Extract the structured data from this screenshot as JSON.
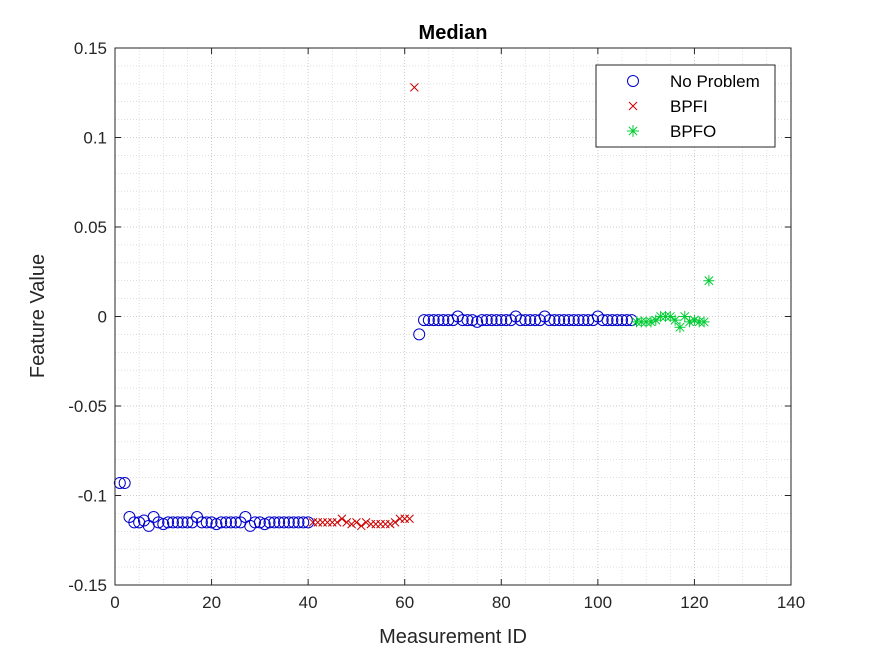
{
  "chart_data": {
    "type": "scatter",
    "title": "Median",
    "xlabel": "Measurement ID",
    "ylabel": "Feature Value",
    "xlim": [
      0,
      140
    ],
    "ylim": [
      -0.15,
      0.15
    ],
    "xticks": [
      "0",
      "20",
      "40",
      "60",
      "80",
      "100",
      "120",
      "140"
    ],
    "yticks": [
      "-0.15",
      "-0.1",
      "-0.05",
      "0",
      "0.05",
      "0.1",
      "0.15"
    ],
    "xtick_values": [
      0,
      20,
      40,
      60,
      80,
      100,
      120,
      140
    ],
    "ytick_values": [
      -0.15,
      -0.1,
      -0.05,
      0,
      0.05,
      0.1,
      0.15
    ],
    "grid": true,
    "legend_position": "top-right",
    "series": [
      {
        "name": "No Problem",
        "marker": "circle",
        "color": "#0000cc",
        "x": [
          1,
          2,
          3,
          4,
          5,
          6,
          7,
          8,
          9,
          10,
          11,
          12,
          13,
          14,
          15,
          16,
          17,
          18,
          19,
          20,
          21,
          22,
          23,
          24,
          25,
          26,
          27,
          28,
          29,
          30,
          31,
          32,
          33,
          34,
          35,
          36,
          37,
          38,
          39,
          40,
          63,
          64,
          65,
          66,
          67,
          68,
          69,
          70,
          71,
          72,
          73,
          74,
          75,
          76,
          77,
          78,
          79,
          80,
          81,
          82,
          83,
          84,
          85,
          86,
          87,
          88,
          89,
          90,
          91,
          92,
          93,
          94,
          95,
          96,
          97,
          98,
          99,
          100,
          101,
          102,
          103,
          104,
          105,
          106,
          107
        ],
        "y": [
          -0.093,
          -0.093,
          -0.112,
          -0.115,
          -0.115,
          -0.114,
          -0.117,
          -0.112,
          -0.115,
          -0.116,
          -0.115,
          -0.115,
          -0.115,
          -0.115,
          -0.115,
          -0.115,
          -0.112,
          -0.115,
          -0.115,
          -0.115,
          -0.116,
          -0.115,
          -0.115,
          -0.115,
          -0.115,
          -0.115,
          -0.112,
          -0.117,
          -0.115,
          -0.115,
          -0.116,
          -0.115,
          -0.115,
          -0.115,
          -0.115,
          -0.115,
          -0.115,
          -0.115,
          -0.115,
          -0.115,
          -0.01,
          -0.002,
          -0.002,
          -0.002,
          -0.002,
          -0.002,
          -0.002,
          -0.002,
          0,
          -0.002,
          -0.002,
          -0.002,
          -0.003,
          -0.002,
          -0.002,
          -0.002,
          -0.002,
          -0.002,
          -0.002,
          -0.002,
          0,
          -0.002,
          -0.002,
          -0.002,
          -0.002,
          -0.002,
          0,
          -0.002,
          -0.002,
          -0.002,
          -0.002,
          -0.002,
          -0.002,
          -0.002,
          -0.002,
          -0.002,
          -0.002,
          0,
          -0.002,
          -0.002,
          -0.002,
          -0.002,
          -0.002,
          -0.002,
          -0.002
        ]
      },
      {
        "name": "BPFI",
        "marker": "x",
        "color": "#cc0000",
        "x": [
          41,
          42,
          43,
          44,
          45,
          46,
          47,
          48,
          49,
          50,
          51,
          52,
          53,
          54,
          55,
          56,
          57,
          58,
          59,
          60,
          61,
          62
        ],
        "y": [
          -0.115,
          -0.115,
          -0.115,
          -0.115,
          -0.115,
          -0.115,
          -0.113,
          -0.115,
          -0.116,
          -0.115,
          -0.117,
          -0.115,
          -0.116,
          -0.116,
          -0.116,
          -0.116,
          -0.116,
          -0.115,
          -0.113,
          -0.113,
          -0.113,
          0.128
        ]
      },
      {
        "name": "BPFO",
        "marker": "asterisk",
        "color": "#00cc33",
        "x": [
          108,
          109,
          110,
          111,
          112,
          113,
          114,
          115,
          116,
          117,
          118,
          119,
          120,
          121,
          122,
          123
        ],
        "y": [
          -0.003,
          -0.003,
          -0.003,
          -0.003,
          -0.002,
          0,
          0,
          0,
          -0.002,
          -0.006,
          0,
          -0.003,
          -0.002,
          -0.003,
          -0.003,
          0.02
        ]
      }
    ]
  }
}
